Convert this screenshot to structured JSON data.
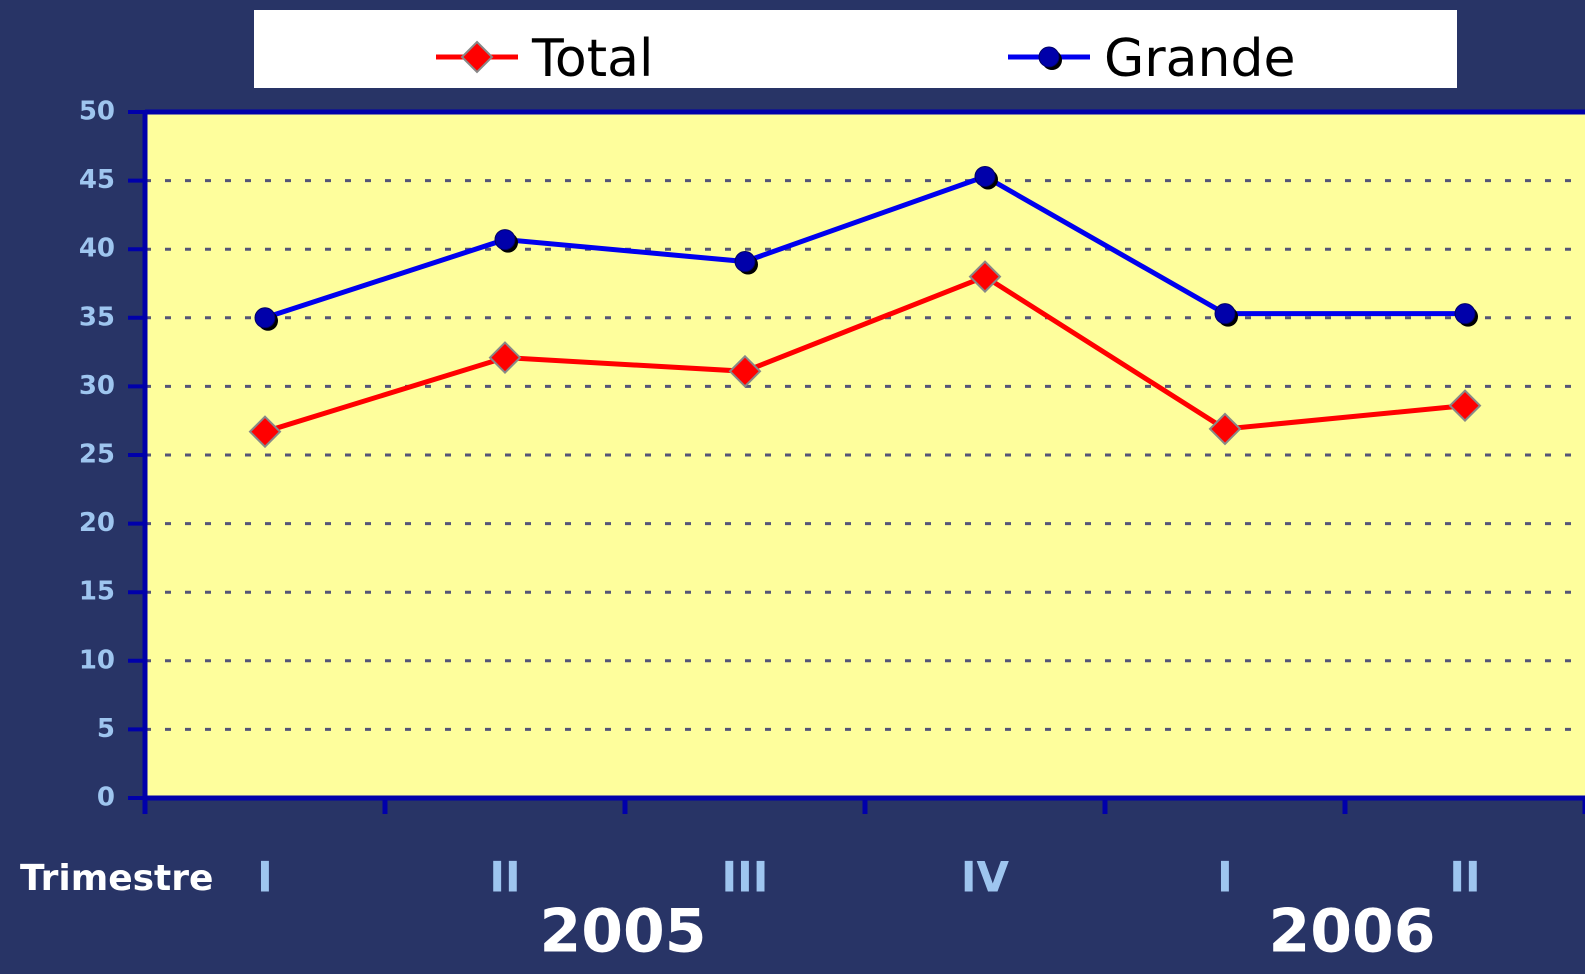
{
  "chart_data": {
    "type": "line",
    "categories": [
      "I",
      "II",
      "III",
      "IV",
      "I",
      "II"
    ],
    "x_label": "Trimestre",
    "year_labels": [
      "2005",
      "2006"
    ],
    "series": [
      {
        "name": "Total",
        "color": "#ff0000",
        "marker": "diamond",
        "values": [
          26.7,
          32.1,
          31.1,
          38.0,
          26.9,
          28.6
        ]
      },
      {
        "name": "Grande",
        "color": "#0000ee",
        "marker": "circle",
        "values": [
          35.0,
          40.7,
          39.1,
          45.3,
          35.3,
          35.3
        ]
      }
    ],
    "ylim": [
      0,
      50
    ],
    "yticks": [
      0,
      5,
      10,
      15,
      20,
      25,
      30,
      35,
      40,
      45,
      50
    ],
    "grid": true
  }
}
